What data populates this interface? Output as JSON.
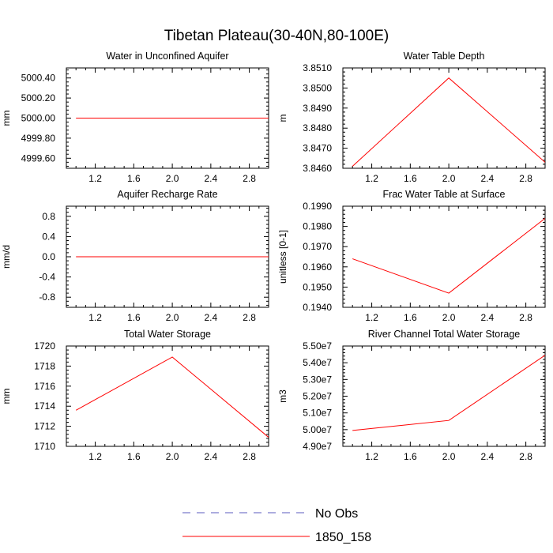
{
  "figure": {
    "title": "Tibetan Plateau(30-40N,80-100E)"
  },
  "legend": {
    "placement": "bottom-center",
    "entries": [
      {
        "name": "No Obs",
        "color": "#5a5abf",
        "dashed": true
      },
      {
        "name": "1850_158",
        "color": "#ff0000",
        "dashed": false
      }
    ]
  },
  "chart_data": [
    {
      "type": "line",
      "title": "Water in Unconfined Aquifer",
      "ylabel": "mm",
      "xlabel": "",
      "xlim": [
        0.9,
        3.0
      ],
      "ylim": [
        4999.5,
        5000.5
      ],
      "xticks": [
        "1.2",
        "1.6",
        "2.0",
        "2.4",
        "2.8"
      ],
      "yticks": [
        "4999.60",
        "4999.80",
        "5000.00",
        "5000.20",
        "5000.40"
      ],
      "series": [
        {
          "name": "1850_158",
          "x": [
            1,
            2,
            3
          ],
          "y": [
            5000.0,
            5000.0,
            5000.0
          ]
        }
      ]
    },
    {
      "type": "line",
      "title": "Water Table Depth",
      "ylabel": "m",
      "xlabel": "",
      "xlim": [
        0.9,
        3.0
      ],
      "ylim": [
        3.846,
        3.851
      ],
      "xticks": [
        "1.2",
        "1.6",
        "2.0",
        "2.4",
        "2.8"
      ],
      "yticks": [
        "3.8460",
        "3.8470",
        "3.8480",
        "3.8490",
        "3.8500",
        "3.8510"
      ],
      "series": [
        {
          "name": "1850_158",
          "x": [
            1,
            2,
            3
          ],
          "y": [
            3.8461,
            3.8505,
            3.8463
          ]
        }
      ]
    },
    {
      "type": "line",
      "title": "Aquifer Recharge Rate",
      "ylabel": "mm/d",
      "xlabel": "",
      "xlim": [
        0.9,
        3.0
      ],
      "ylim": [
        -1.0,
        1.0
      ],
      "xticks": [
        "1.2",
        "1.6",
        "2.0",
        "2.4",
        "2.8"
      ],
      "yticks": [
        "-0.8",
        "-0.4",
        "0.0",
        "0.4",
        "0.8"
      ],
      "series": [
        {
          "name": "1850_158",
          "x": [
            1,
            2,
            3
          ],
          "y": [
            0.0,
            0.0,
            0.0
          ]
        }
      ]
    },
    {
      "type": "line",
      "title": "Frac Water Table at Surface",
      "ylabel": "unitless [0-1]",
      "xlabel": "",
      "xlim": [
        0.9,
        3.0
      ],
      "ylim": [
        0.194,
        0.199
      ],
      "xticks": [
        "1.2",
        "1.6",
        "2.0",
        "2.4",
        "2.8"
      ],
      "yticks": [
        "0.1940",
        "0.1950",
        "0.1960",
        "0.1970",
        "0.1980",
        "0.1990"
      ],
      "series": [
        {
          "name": "1850_158",
          "x": [
            1,
            2,
            3
          ],
          "y": [
            0.1964,
            0.1947,
            0.1984
          ]
        }
      ]
    },
    {
      "type": "line",
      "title": "Total Water Storage",
      "ylabel": "mm",
      "xlabel": "",
      "xlim": [
        0.9,
        3.0
      ],
      "ylim": [
        1710,
        1720
      ],
      "xticks": [
        "1.2",
        "1.6",
        "2.0",
        "2.4",
        "2.8"
      ],
      "yticks": [
        "1710",
        "1712",
        "1714",
        "1716",
        "1718",
        "1720"
      ],
      "series": [
        {
          "name": "1850_158",
          "x": [
            1,
            2,
            3
          ],
          "y": [
            1713.6,
            1718.9,
            1710.9
          ]
        }
      ]
    },
    {
      "type": "line",
      "title": "River Channel Total Water Storage",
      "ylabel": "m3",
      "xlabel": "",
      "xlim": [
        0.9,
        3.0
      ],
      "ylim": [
        49000000,
        55000000
      ],
      "xticks": [
        "1.2",
        "1.6",
        "2.0",
        "2.4",
        "2.8"
      ],
      "yticks": [
        "4.90e7",
        "5.00e7",
        "5.10e7",
        "5.20e7",
        "5.30e7",
        "5.40e7",
        "5.50e7"
      ],
      "series": [
        {
          "name": "1850_158",
          "x": [
            1,
            2,
            3
          ],
          "y": [
            49950000,
            50550000,
            54450000
          ]
        }
      ]
    }
  ]
}
